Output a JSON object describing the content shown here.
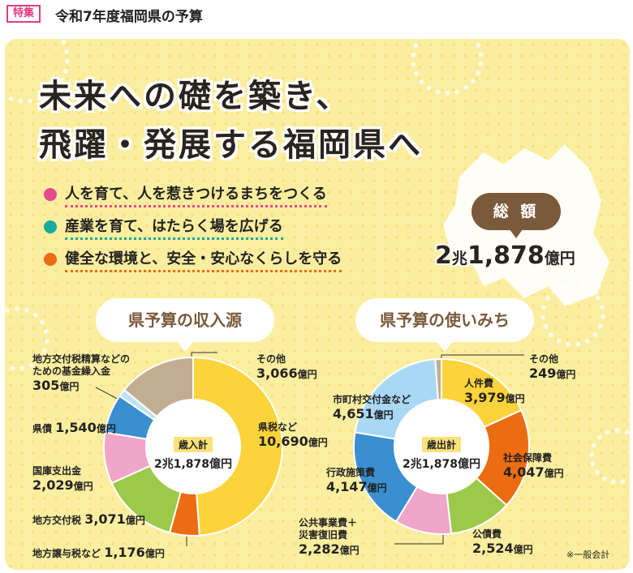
{
  "header": {
    "tag": "特集",
    "title": "令和7年度福岡県の予算"
  },
  "headline": {
    "line1": "未来への礎を築き、",
    "line2": "飛躍・発展する福岡県へ"
  },
  "pillars": [
    {
      "text": "人を育て、人を惹きつけるまちをつくる",
      "color": "#e54a8e"
    },
    {
      "text": "産業を育て、はたらく場を広げる",
      "color": "#1ba99a"
    },
    {
      "text": "健全な環境と、安全・安心なくらしを守る",
      "color": "#ec6c12"
    }
  ],
  "total": {
    "badge": "総 額",
    "n1": "2",
    "u1": "兆",
    "n2": "1,878",
    "u2": "億円"
  },
  "revenue": {
    "bubble": "県予算の収入源",
    "center_sub": "歳入計",
    "center_amt": "2兆1,878億円",
    "labels": {
      "other_name": "その他",
      "other_val": "3,066",
      "fund_name1": "地方交付税精算などの",
      "fund_name2": "ための基金繰入金",
      "fund_val": "305",
      "bond_name": "県債",
      "bond_val": "1,540",
      "treasury_name": "国庫支出金",
      "treasury_val": "2,029",
      "grant_name": "地方交付税",
      "grant_val": "3,071",
      "transfer_name": "地方譲与税など",
      "transfer_val": "1,176",
      "tax_name": "県税など",
      "tax_val": "10,690"
    }
  },
  "expenditure": {
    "bubble": "県予算の使いみち",
    "center_sub": "歳出計",
    "center_amt": "2兆1,878億円",
    "labels": {
      "other_name": "その他",
      "other_val": "249",
      "personnel_name": "人件費",
      "personnel_val": "3,979",
      "social_name": "社会保障費",
      "social_val": "4,047",
      "debt_name": "公債費",
      "debt_val": "2,524",
      "public_name1": "公共事業費＋",
      "public_name2": "災害復旧費",
      "public_val": "2,282",
      "admin_name": "行政施策費",
      "admin_val": "4,147",
      "municipal_name": "市町村交付金など",
      "municipal_val": "4,651"
    }
  },
  "unit": "億円",
  "note": "※一般会計",
  "chart_data": [
    {
      "type": "pie",
      "title": "県予算の収入源",
      "center_text": "歳入計 2兆1,878億円",
      "unit": "億円",
      "categories": [
        "県税など",
        "地方譲与税など",
        "地方交付税",
        "国庫支出金",
        "県債",
        "地方交付税精算などのための基金繰入金",
        "その他"
      ],
      "values": [
        10690,
        1176,
        3071,
        2029,
        1540,
        305,
        3066
      ],
      "colors": [
        "#fcd33a",
        "#ec6c12",
        "#9cc94a",
        "#f0a6c9",
        "#3a8fd0",
        "#bfe3f5",
        "#c2ad91"
      ]
    },
    {
      "type": "pie",
      "title": "県予算の使いみち",
      "center_text": "歳出計 2兆1,878億円",
      "unit": "億円",
      "categories": [
        "人件費",
        "社会保障費",
        "公債費",
        "公共事業費＋災害復旧費",
        "行政施策費",
        "市町村交付金など",
        "その他"
      ],
      "values": [
        3979,
        4047,
        2524,
        2282,
        4147,
        4651,
        249
      ],
      "colors": [
        "#fcd33a",
        "#ec6c12",
        "#9cc94a",
        "#f0a6c9",
        "#3a8fd0",
        "#a9d8f5",
        "#c2ad91"
      ]
    }
  ]
}
